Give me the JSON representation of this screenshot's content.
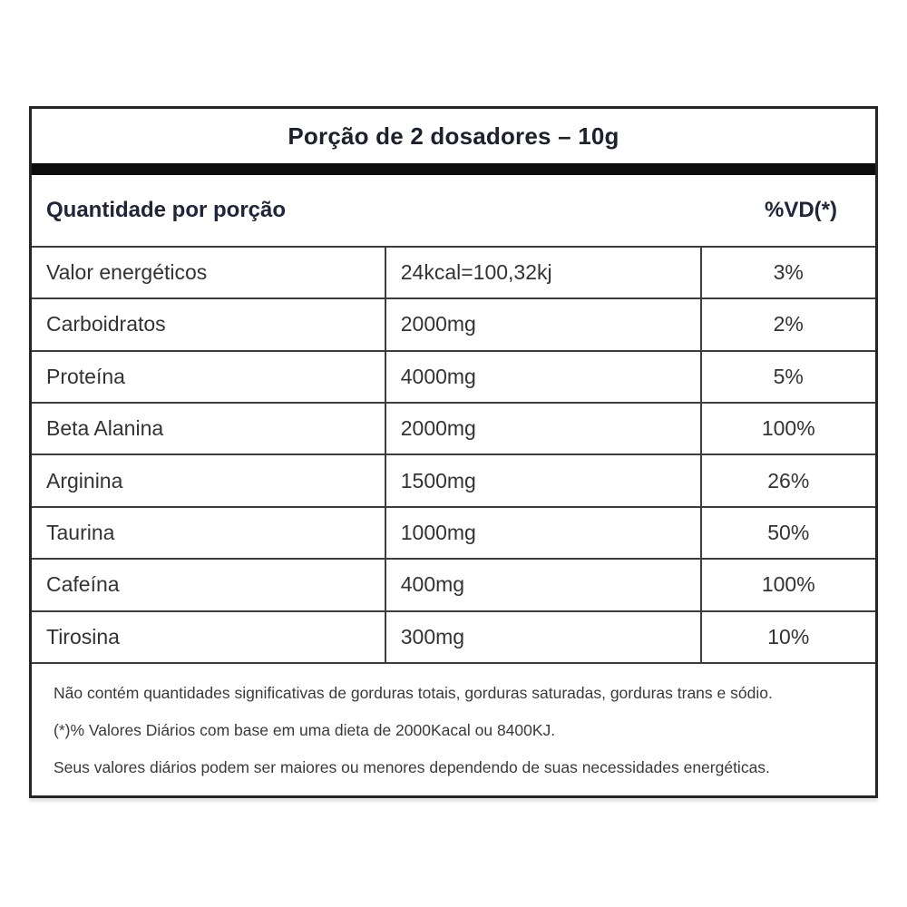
{
  "label": {
    "serving_title": "Porção de 2 dosadores – 10g",
    "header": {
      "quantity_label": "Quantidade por porção",
      "dv_label": "%VD(*)"
    },
    "rows": [
      {
        "nutrient": "Valor energéticos",
        "amount": "24kcal=100,32kj",
        "dv": "3%"
      },
      {
        "nutrient": "Carboidratos",
        "amount": "2000mg",
        "dv": "2%"
      },
      {
        "nutrient": "Proteína",
        "amount": "4000mg",
        "dv": "5%"
      },
      {
        "nutrient": "Beta Alanina",
        "amount": "2000mg",
        "dv": "100%"
      },
      {
        "nutrient": "Arginina",
        "amount": "1500mg",
        "dv": "26%"
      },
      {
        "nutrient": "Taurina",
        "amount": "1000mg",
        "dv": "50%"
      },
      {
        "nutrient": "Cafeína",
        "amount": "400mg",
        "dv": "100%"
      },
      {
        "nutrient": "Tirosina",
        "amount": "300mg",
        "dv": "10%"
      }
    ],
    "footnotes": [
      "Não contém quantidades significativas de gorduras totais, gorduras saturadas, gorduras trans e sódio.",
      "(*)% Valores Diários com base em uma dieta de 2000Kacal ou 8400KJ.",
      "Seus valores diários podem ser maiores ou menores dependendo de suas necessidades energéticas."
    ],
    "colors": {
      "text": "#333333",
      "header_text": "#1d212e",
      "border": "#3d3d3d",
      "separator_bar": "#0c0c0c",
      "background": "#ffffff"
    }
  }
}
